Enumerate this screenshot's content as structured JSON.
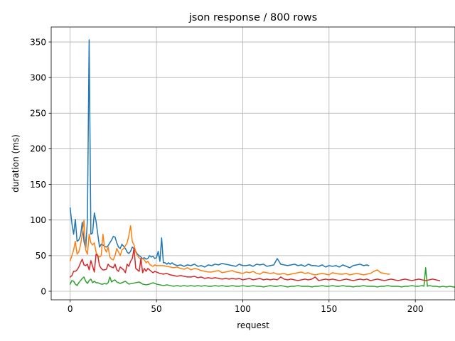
{
  "chart_data": {
    "type": "line",
    "title": "json response / 800 rows",
    "xlabel": "request",
    "ylabel": "duration (ms)",
    "xlim": [
      -11,
      223
    ],
    "ylim": [
      -12,
      371
    ],
    "xticks": [
      0,
      50,
      100,
      150,
      200
    ],
    "yticks": [
      0,
      50,
      100,
      150,
      200,
      250,
      300,
      350
    ],
    "grid": true,
    "legend": "none",
    "series": [
      {
        "color": "#1f77b4",
        "x": [
          0,
          1,
          2,
          3,
          4,
          5,
          6,
          7,
          8,
          9,
          10,
          11,
          12,
          13,
          14,
          15,
          16,
          17,
          18,
          19,
          20,
          21,
          22,
          23,
          24,
          25,
          26,
          27,
          28,
          29,
          30,
          31,
          32,
          33,
          34,
          35,
          36,
          37,
          38,
          39,
          40,
          41,
          42,
          43,
          44,
          45,
          46,
          47,
          48,
          49,
          50,
          51,
          52,
          53,
          54,
          55,
          56,
          57,
          58,
          59,
          60,
          62,
          64,
          66,
          68,
          70,
          72,
          74,
          76,
          78,
          80,
          82,
          84,
          86,
          88,
          90,
          92,
          94,
          96,
          98,
          100,
          102,
          104,
          106,
          108,
          110,
          112,
          114,
          116,
          118,
          120,
          122,
          124,
          126,
          128,
          130,
          132,
          134,
          136,
          138,
          140,
          142,
          144,
          146,
          148,
          150,
          152,
          154,
          156,
          158,
          160,
          162,
          164,
          166,
          168,
          170,
          172,
          173
        ],
        "y": [
          117,
          95,
          80,
          101,
          70,
          72,
          78,
          97,
          70,
          60,
          100,
          353,
          80,
          82,
          110,
          98,
          80,
          62,
          66,
          65,
          63,
          62,
          64,
          68,
          72,
          77,
          76,
          68,
          62,
          60,
          66,
          63,
          60,
          55,
          53,
          56,
          62,
          60,
          56,
          52,
          50,
          48,
          46,
          47,
          45,
          46,
          50,
          48,
          49,
          46,
          47,
          56,
          42,
          75,
          40,
          40,
          38,
          40,
          38,
          40,
          38,
          36,
          37,
          35,
          37,
          36,
          38,
          35,
          36,
          34,
          37,
          36,
          38,
          37,
          39,
          38,
          37,
          36,
          35,
          38,
          36,
          36,
          37,
          35,
          38,
          37,
          38,
          35,
          36,
          37,
          46,
          38,
          37,
          36,
          37,
          38,
          36,
          37,
          35,
          38,
          36,
          36,
          35,
          37,
          34,
          36,
          35,
          36,
          34,
          37,
          35,
          33,
          36,
          37,
          38,
          36,
          37,
          36
        ]
      },
      {
        "color": "#ff7f0e",
        "x": [
          0,
          1,
          2,
          3,
          4,
          5,
          6,
          7,
          8,
          9,
          10,
          11,
          12,
          13,
          14,
          15,
          16,
          17,
          18,
          19,
          20,
          21,
          22,
          23,
          24,
          25,
          26,
          27,
          28,
          29,
          30,
          31,
          32,
          33,
          34,
          35,
          36,
          37,
          38,
          39,
          40,
          41,
          42,
          43,
          44,
          45,
          46,
          47,
          48,
          49,
          50,
          52,
          54,
          56,
          58,
          60,
          62,
          64,
          66,
          68,
          70,
          72,
          74,
          76,
          78,
          80,
          82,
          84,
          86,
          88,
          90,
          92,
          94,
          96,
          98,
          100,
          102,
          104,
          106,
          108,
          110,
          112,
          114,
          116,
          118,
          120,
          122,
          124,
          126,
          128,
          130,
          132,
          134,
          136,
          138,
          140,
          142,
          144,
          146,
          148,
          150,
          152,
          154,
          156,
          158,
          160,
          162,
          164,
          166,
          168,
          170,
          172,
          174,
          176,
          178,
          180,
          182,
          184,
          185
        ],
        "y": [
          43,
          50,
          58,
          70,
          52,
          55,
          65,
          80,
          100,
          58,
          52,
          80,
          68,
          65,
          68,
          55,
          50,
          48,
          50,
          80,
          60,
          55,
          62,
          48,
          45,
          44,
          50,
          60,
          55,
          50,
          58,
          60,
          64,
          68,
          78,
          92,
          70,
          65,
          55,
          50,
          47,
          45,
          46,
          44,
          40,
          42,
          38,
          36,
          35,
          37,
          36,
          36,
          36,
          35,
          34,
          33,
          34,
          32,
          31,
          33,
          30,
          32,
          31,
          29,
          28,
          27,
          27,
          28,
          29,
          26,
          27,
          28,
          29,
          27,
          26,
          25,
          27,
          26,
          28,
          25,
          24,
          27,
          26,
          25,
          26,
          24,
          24,
          25,
          23,
          24,
          25,
          26,
          27,
          25,
          26,
          24,
          23,
          24,
          25,
          24,
          23,
          26,
          25,
          24,
          24,
          25,
          23,
          24,
          25,
          24,
          23,
          24,
          25,
          28,
          30,
          26,
          25,
          24,
          24
        ]
      },
      {
        "color": "#2ca02c",
        "x": [
          0,
          1,
          2,
          3,
          4,
          5,
          6,
          7,
          8,
          9,
          10,
          11,
          12,
          13,
          14,
          15,
          16,
          17,
          18,
          19,
          20,
          21,
          22,
          23,
          24,
          25,
          26,
          27,
          28,
          29,
          30,
          32,
          34,
          36,
          38,
          40,
          42,
          44,
          46,
          48,
          50,
          52,
          54,
          56,
          58,
          60,
          62,
          64,
          66,
          68,
          70,
          72,
          74,
          76,
          78,
          80,
          82,
          84,
          86,
          88,
          90,
          92,
          94,
          96,
          98,
          100,
          102,
          104,
          106,
          108,
          110,
          112,
          114,
          116,
          118,
          120,
          122,
          124,
          126,
          128,
          130,
          132,
          134,
          136,
          138,
          140,
          142,
          144,
          146,
          148,
          150,
          152,
          154,
          156,
          158,
          160,
          162,
          164,
          166,
          168,
          170,
          172,
          174,
          176,
          178,
          180,
          182,
          184,
          186,
          188,
          190,
          192,
          194,
          196,
          198,
          200,
          202,
          204,
          205,
          206,
          207,
          208,
          210,
          212,
          214,
          216,
          218,
          220,
          222,
          223
        ],
        "y": [
          10,
          15,
          14,
          10,
          8,
          12,
          15,
          18,
          20,
          14,
          11,
          15,
          17,
          12,
          14,
          12,
          12,
          11,
          10,
          10,
          11,
          10,
          12,
          20,
          13,
          15,
          16,
          13,
          12,
          11,
          12,
          14,
          10,
          11,
          12,
          13,
          10,
          9,
          10,
          12,
          10,
          9,
          8,
          9,
          8,
          7,
          8,
          7,
          8,
          7,
          8,
          7,
          8,
          7,
          8,
          7,
          7,
          8,
          7,
          8,
          7,
          7,
          8,
          7,
          7,
          8,
          7,
          7,
          8,
          7,
          7,
          6,
          7,
          8,
          7,
          7,
          8,
          7,
          6,
          7,
          7,
          8,
          7,
          7,
          7,
          6,
          7,
          7,
          8,
          7,
          7,
          8,
          7,
          7,
          8,
          7,
          7,
          6,
          7,
          7,
          8,
          7,
          7,
          7,
          6,
          7,
          7,
          8,
          7,
          7,
          7,
          6,
          7,
          7,
          8,
          7,
          7,
          8,
          7,
          33,
          7,
          8,
          7,
          7,
          6,
          7,
          6,
          7,
          6,
          6
        ]
      },
      {
        "color": "#d62728",
        "x": [
          0,
          1,
          2,
          3,
          4,
          5,
          6,
          7,
          8,
          9,
          10,
          11,
          12,
          13,
          14,
          15,
          16,
          17,
          18,
          19,
          20,
          21,
          22,
          23,
          24,
          25,
          26,
          27,
          28,
          29,
          30,
          31,
          32,
          33,
          34,
          35,
          36,
          37,
          38,
          39,
          40,
          41,
          42,
          43,
          44,
          45,
          46,
          47,
          48,
          49,
          50,
          52,
          54,
          56,
          58,
          60,
          62,
          64,
          66,
          68,
          70,
          72,
          74,
          76,
          78,
          80,
          82,
          84,
          86,
          88,
          90,
          92,
          94,
          96,
          98,
          100,
          102,
          104,
          106,
          108,
          110,
          112,
          114,
          116,
          118,
          120,
          122,
          124,
          126,
          128,
          130,
          132,
          134,
          136,
          138,
          140,
          142,
          144,
          146,
          148,
          150,
          152,
          154,
          156,
          158,
          160,
          162,
          164,
          166,
          168,
          170,
          172,
          174,
          176,
          178,
          180,
          182,
          184,
          186,
          188,
          190,
          192,
          194,
          196,
          198,
          200,
          202,
          204,
          206,
          208,
          210,
          212,
          214
        ],
        "y": [
          20,
          22,
          28,
          28,
          30,
          34,
          40,
          45,
          37,
          36,
          38,
          30,
          43,
          35,
          27,
          52,
          50,
          36,
          32,
          30,
          30,
          31,
          38,
          35,
          34,
          33,
          38,
          30,
          28,
          34,
          32,
          30,
          26,
          38,
          35,
          42,
          46,
          60,
          32,
          30,
          28,
          46,
          26,
          32,
          28,
          32,
          30,
          28,
          26,
          28,
          27,
          25,
          24,
          25,
          23,
          22,
          21,
          22,
          21,
          20,
          20,
          21,
          19,
          20,
          18,
          19,
          18,
          19,
          18,
          17,
          18,
          17,
          18,
          17,
          18,
          16,
          17,
          18,
          16,
          17,
          18,
          16,
          17,
          16,
          17,
          16,
          20,
          17,
          16,
          17,
          16,
          15,
          16,
          17,
          16,
          17,
          20,
          15,
          16,
          17,
          16,
          17,
          16,
          15,
          16,
          17,
          16,
          15,
          16,
          17,
          16,
          17,
          15,
          16,
          17,
          16,
          15,
          16,
          17,
          16,
          15,
          16,
          17,
          16,
          15,
          16,
          17,
          16,
          15,
          16,
          17,
          16,
          15
        ]
      }
    ]
  }
}
